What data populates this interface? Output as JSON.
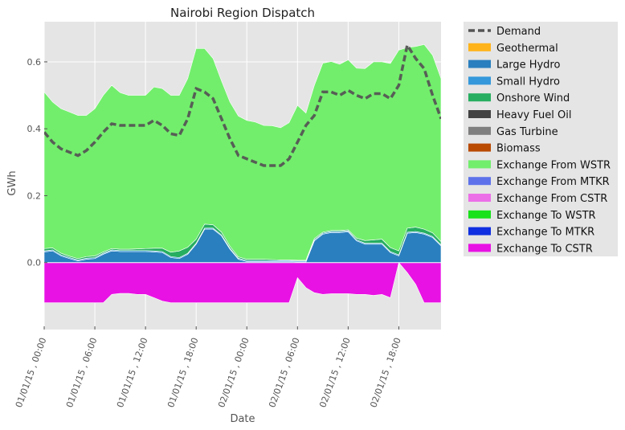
{
  "chart_data": {
    "type": "area",
    "title": "Nairobi Region Dispatch",
    "xlabel": "Date",
    "ylabel": "GWh",
    "ylim": [
      -0.2,
      0.72
    ],
    "yticks": [
      0.0,
      0.2,
      0.4,
      0.6
    ],
    "ytick_labels": [
      "0.0",
      "0.2",
      "0.4",
      "0.6"
    ],
    "x_hours": [
      0,
      1,
      2,
      3,
      4,
      5,
      6,
      7,
      8,
      9,
      10,
      11,
      12,
      13,
      14,
      15,
      16,
      17,
      18,
      19,
      20,
      21,
      22,
      23,
      24,
      25,
      26,
      27,
      28,
      29,
      30,
      31,
      32,
      33,
      34,
      35,
      36,
      37,
      38,
      39,
      40,
      41,
      42,
      43,
      44,
      45,
      46,
      47
    ],
    "xticks": [
      0,
      6,
      12,
      18,
      24,
      30,
      36,
      42
    ],
    "xtick_labels": [
      "01/01/15 , 00:00",
      "01/01/15 , 06:00",
      "01/01/15 , 12:00",
      "01/01/15 , 18:00",
      "02/01/15 , 00:00",
      "02/01/15 , 06:00",
      "02/01/15 , 12:00",
      "02/01/15 , 18:00"
    ],
    "grid": true,
    "legend_position": "outside-right",
    "series": [
      {
        "name": "Geothermal",
        "color": "#ffb31a",
        "values": [
          0,
          0,
          0,
          0,
          0,
          0,
          0,
          0,
          0,
          0,
          0,
          0,
          0,
          0,
          0,
          0,
          0,
          0,
          0,
          0,
          0,
          0,
          0,
          0,
          0,
          0,
          0,
          0,
          0,
          0,
          0,
          0,
          0,
          0,
          0,
          0,
          0,
          0,
          0,
          0,
          0,
          0,
          0,
          0,
          0,
          0,
          0,
          0
        ]
      },
      {
        "name": "Large Hydro",
        "color": "#2a7fbf",
        "values": [
          0.032,
          0.035,
          0.02,
          0.012,
          0.005,
          0.01,
          0.012,
          0.025,
          0.035,
          0.033,
          0.033,
          0.033,
          0.033,
          0.032,
          0.03,
          0.015,
          0.012,
          0.025,
          0.055,
          0.1,
          0.1,
          0.08,
          0.04,
          0.01,
          0.003,
          0.003,
          0.003,
          0.003,
          0.003,
          0.003,
          0.002,
          0.002,
          0.065,
          0.085,
          0.09,
          0.09,
          0.092,
          0.065,
          0.055,
          0.055,
          0.055,
          0.03,
          0.02,
          0.088,
          0.09,
          0.085,
          0.075,
          0.05
        ]
      },
      {
        "name": "Small Hydro",
        "color": "#3498db",
        "values": [
          0.003,
          0.003,
          0.003,
          0.003,
          0.003,
          0.003,
          0.003,
          0.003,
          0.003,
          0.003,
          0.003,
          0.003,
          0.003,
          0.003,
          0.003,
          0.003,
          0.003,
          0.003,
          0.003,
          0.003,
          0.003,
          0.003,
          0.003,
          0.003,
          0.003,
          0.003,
          0.003,
          0.003,
          0.003,
          0.003,
          0.003,
          0.003,
          0.003,
          0.003,
          0.003,
          0.003,
          0.003,
          0.003,
          0.003,
          0.003,
          0.003,
          0.003,
          0.003,
          0.003,
          0.003,
          0.003,
          0.003,
          0.003
        ]
      },
      {
        "name": "Onshore Wind",
        "color": "#27ae60",
        "values": [
          0.007,
          0.006,
          0.005,
          0.004,
          0.004,
          0.005,
          0.005,
          0.004,
          0.004,
          0.004,
          0.004,
          0.005,
          0.006,
          0.008,
          0.01,
          0.013,
          0.02,
          0.018,
          0.012,
          0.012,
          0.01,
          0.008,
          0.006,
          0.004,
          0.004,
          0.004,
          0.004,
          0.003,
          0.002,
          0.002,
          0.002,
          0.002,
          0.004,
          0.003,
          0.003,
          0.003,
          0.003,
          0.005,
          0.008,
          0.01,
          0.012,
          0.012,
          0.012,
          0.012,
          0.013,
          0.012,
          0.011,
          0.01
        ]
      },
      {
        "name": "Heavy Fuel Oil",
        "color": "#424242",
        "values": [
          0,
          0,
          0,
          0,
          0,
          0,
          0,
          0,
          0,
          0,
          0,
          0,
          0,
          0,
          0,
          0,
          0,
          0,
          0,
          0,
          0,
          0,
          0,
          0,
          0,
          0,
          0,
          0,
          0,
          0,
          0,
          0,
          0,
          0,
          0,
          0,
          0,
          0,
          0,
          0,
          0,
          0,
          0,
          0,
          0,
          0,
          0,
          0
        ]
      },
      {
        "name": "Gas Turbine",
        "color": "#7f7f7f",
        "values": [
          0,
          0,
          0,
          0,
          0,
          0,
          0,
          0,
          0,
          0,
          0,
          0,
          0,
          0,
          0,
          0,
          0,
          0,
          0,
          0,
          0,
          0,
          0,
          0,
          0,
          0,
          0,
          0,
          0,
          0,
          0,
          0,
          0,
          0,
          0,
          0,
          0,
          0,
          0,
          0,
          0,
          0,
          0,
          0,
          0,
          0,
          0,
          0
        ]
      },
      {
        "name": "Biomass",
        "color": "#b94a00",
        "values": [
          0,
          0,
          0,
          0,
          0,
          0,
          0,
          0,
          0,
          0,
          0,
          0,
          0,
          0,
          0,
          0,
          0,
          0,
          0,
          0,
          0,
          0,
          0,
          0,
          0,
          0,
          0,
          0,
          0,
          0,
          0,
          0,
          0,
          0,
          0,
          0,
          0,
          0,
          0,
          0,
          0,
          0,
          0,
          0,
          0,
          0,
          0,
          0
        ]
      },
      {
        "name": "Exchange From WSTR",
        "color": "#72ee6c",
        "values": [
          0.468,
          0.436,
          0.432,
          0.431,
          0.428,
          0.422,
          0.44,
          0.468,
          0.488,
          0.468,
          0.46,
          0.459,
          0.458,
          0.482,
          0.477,
          0.469,
          0.465,
          0.504,
          0.57,
          0.525,
          0.497,
          0.452,
          0.431,
          0.421,
          0.415,
          0.41,
          0.4,
          0.4,
          0.395,
          0.41,
          0.463,
          0.44,
          0.458,
          0.505,
          0.505,
          0.497,
          0.508,
          0.508,
          0.514,
          0.532,
          0.53,
          0.55,
          0.6,
          0.54,
          0.54,
          0.552,
          0.531,
          0.487
        ]
      },
      {
        "name": "Exchange From MTKR",
        "color": "#5d72ea",
        "values": [
          0,
          0,
          0,
          0,
          0,
          0,
          0,
          0,
          0,
          0,
          0,
          0,
          0,
          0,
          0,
          0,
          0,
          0,
          0,
          0,
          0,
          0,
          0,
          0,
          0,
          0,
          0,
          0,
          0,
          0,
          0,
          0,
          0,
          0,
          0,
          0,
          0,
          0,
          0,
          0,
          0,
          0,
          0,
          0,
          0,
          0,
          0,
          0
        ]
      },
      {
        "name": "Exchange From CSTR",
        "color": "#ec6fe8",
        "values": [
          0,
          0,
          0,
          0,
          0,
          0,
          0,
          0,
          0,
          0,
          0,
          0,
          0,
          0,
          0,
          0,
          0,
          0,
          0,
          0,
          0,
          0,
          0,
          0,
          0,
          0,
          0,
          0,
          0,
          0,
          0,
          0,
          0,
          0,
          0,
          0,
          0,
          0,
          0,
          0,
          0,
          0,
          0,
          0,
          0,
          0,
          0,
          0
        ]
      },
      {
        "name": "Exchange To WSTR",
        "color": "#19e21b",
        "values": [
          0,
          0,
          0,
          0,
          0,
          0,
          0,
          0,
          0,
          0,
          0,
          0,
          0,
          0,
          0,
          0,
          0,
          0,
          0,
          0,
          0,
          0,
          0,
          0,
          0,
          0,
          0,
          0,
          0,
          0,
          0,
          0,
          0,
          0,
          0,
          0,
          0,
          0,
          0,
          0,
          0,
          0,
          0,
          0,
          0,
          0,
          0,
          0
        ]
      },
      {
        "name": "Exchange To MTKR",
        "color": "#0f2fe0",
        "values": [
          0,
          0,
          0,
          0,
          0,
          0,
          0,
          0,
          0,
          0,
          0,
          0,
          0,
          0,
          0,
          0,
          0,
          0,
          0,
          0,
          0,
          0,
          0,
          0,
          0,
          0,
          0,
          0,
          0,
          0,
          0,
          0,
          0,
          0,
          0,
          0,
          0,
          0,
          0,
          0,
          0,
          0,
          0,
          0,
          0,
          0,
          0,
          0
        ]
      },
      {
        "name": "Exchange To CSTR",
        "color": "#e812e4",
        "values": [
          -0.12,
          -0.12,
          -0.12,
          -0.12,
          -0.12,
          -0.12,
          -0.12,
          -0.12,
          -0.095,
          -0.092,
          -0.092,
          -0.095,
          -0.095,
          -0.105,
          -0.115,
          -0.12,
          -0.12,
          -0.12,
          -0.12,
          -0.12,
          -0.12,
          -0.12,
          -0.12,
          -0.12,
          -0.12,
          -0.12,
          -0.12,
          -0.12,
          -0.12,
          -0.12,
          -0.045,
          -0.075,
          -0.09,
          -0.095,
          -0.093,
          -0.093,
          -0.093,
          -0.095,
          -0.095,
          -0.098,
          -0.095,
          -0.105,
          0.0,
          -0.03,
          -0.065,
          -0.12,
          -0.12,
          -0.12
        ]
      }
    ],
    "demand": {
      "name": "Demand",
      "color": "#555555",
      "values": [
        0.39,
        0.36,
        0.34,
        0.33,
        0.32,
        0.335,
        0.36,
        0.39,
        0.415,
        0.41,
        0.41,
        0.41,
        0.41,
        0.425,
        0.41,
        0.385,
        0.38,
        0.43,
        0.52,
        0.51,
        0.49,
        0.43,
        0.37,
        0.32,
        0.31,
        0.3,
        0.29,
        0.29,
        0.29,
        0.31,
        0.36,
        0.41,
        0.44,
        0.51,
        0.51,
        0.5,
        0.515,
        0.5,
        0.49,
        0.505,
        0.505,
        0.49,
        0.53,
        0.65,
        0.61,
        0.58,
        0.5,
        0.43
      ]
    },
    "legend": [
      "Demand",
      "Geothermal",
      "Large Hydro",
      "Small Hydro",
      "Onshore Wind",
      "Heavy Fuel Oil",
      "Gas Turbine",
      "Biomass",
      "Exchange From WSTR",
      "Exchange From MTKR",
      "Exchange From CSTR",
      "Exchange To WSTR",
      "Exchange To MTKR",
      "Exchange To CSTR"
    ]
  }
}
